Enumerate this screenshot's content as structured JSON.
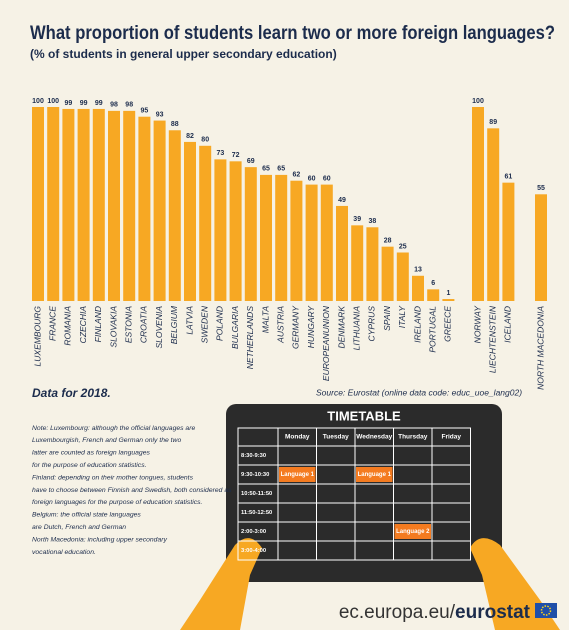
{
  "chart_data": {
    "type": "bar",
    "title": "What proportion of students learn two or more foreign languages?",
    "subtitle": "(% of students in general upper secondary education)",
    "color": "#f7a823",
    "groups": [
      {
        "categories": [
          "LUXEMBOURG",
          "FRANCE",
          "ROMANIA",
          "CZECHIA",
          "FINLAND",
          "SLOVAKIA",
          "ESTONIA",
          "CROATIA",
          "SLOVENIA",
          "BELGIUM",
          "LATVIA",
          "SWEDEN",
          "POLAND",
          "BULGARIA",
          "NETHERLANDS",
          "MALTA",
          "AUSTRIA",
          "GERMANY",
          "HUNGARY",
          "EUROPEANUNION",
          "DENMARK",
          "LITHUANIA",
          "CYPRUS",
          "SPAIN",
          "ITALY",
          "IRELAND",
          "PORTUGAL",
          "GREECE"
        ],
        "values": [
          100,
          100,
          99,
          99,
          99,
          98,
          98,
          95,
          93,
          88,
          82,
          80,
          73,
          72,
          69,
          65,
          65,
          62,
          60,
          60,
          49,
          39,
          38,
          28,
          25,
          13,
          6,
          1
        ]
      },
      {
        "categories": [
          "NORWAY",
          "LIECHTENSTEIN",
          "ICELAND"
        ],
        "values": [
          100,
          89,
          61
        ]
      },
      {
        "categories": [
          "NORTH MACEDONIA"
        ],
        "values": [
          55
        ]
      }
    ],
    "ylim": [
      0,
      100
    ],
    "period_note": "Data for 2018.",
    "source": "Source: Eurostat (online data code: educ_uoe_lang02)",
    "notes": [
      "Note: Luxembourg: although the official languages are",
      "Luxembourgish, French and German only the two",
      "latter are counted as foreign languages",
      "for the purpose of education statistics.",
      "Finland: depending on their mother tongues, students",
      "have to choose between Finnish and Swedish, both considered as",
      "foreign languages for the purpose of education statistics.",
      "Belgium: the official state languages",
      "are Dutch, French and German",
      "North Macedonia: including upper secondary",
      "vocational education."
    ]
  },
  "timetable": {
    "title": "TIMETABLE",
    "days": [
      "Monday",
      "Tuesday",
      "Wednesday",
      "Thursday",
      "Friday"
    ],
    "rows": [
      {
        "time": "8:30-9:30",
        "cells": [
          null,
          null,
          null,
          null,
          null
        ]
      },
      {
        "time": "9:30-10:30",
        "cells": [
          "Language 1",
          null,
          "Language 1",
          null,
          null
        ]
      },
      {
        "time": "10:50-11:50",
        "cells": [
          null,
          null,
          null,
          null,
          null
        ]
      },
      {
        "time": "11:50-12:50",
        "cells": [
          null,
          null,
          null,
          null,
          null
        ]
      },
      {
        "time": "2:00-3:00",
        "cells": [
          null,
          null,
          null,
          "Language 2",
          null
        ]
      },
      {
        "time": "3:00-4:00",
        "cells": [
          null,
          null,
          null,
          null,
          null
        ]
      }
    ]
  },
  "footer": {
    "domain": "ec.europa.eu/",
    "brand": "eurostat"
  }
}
